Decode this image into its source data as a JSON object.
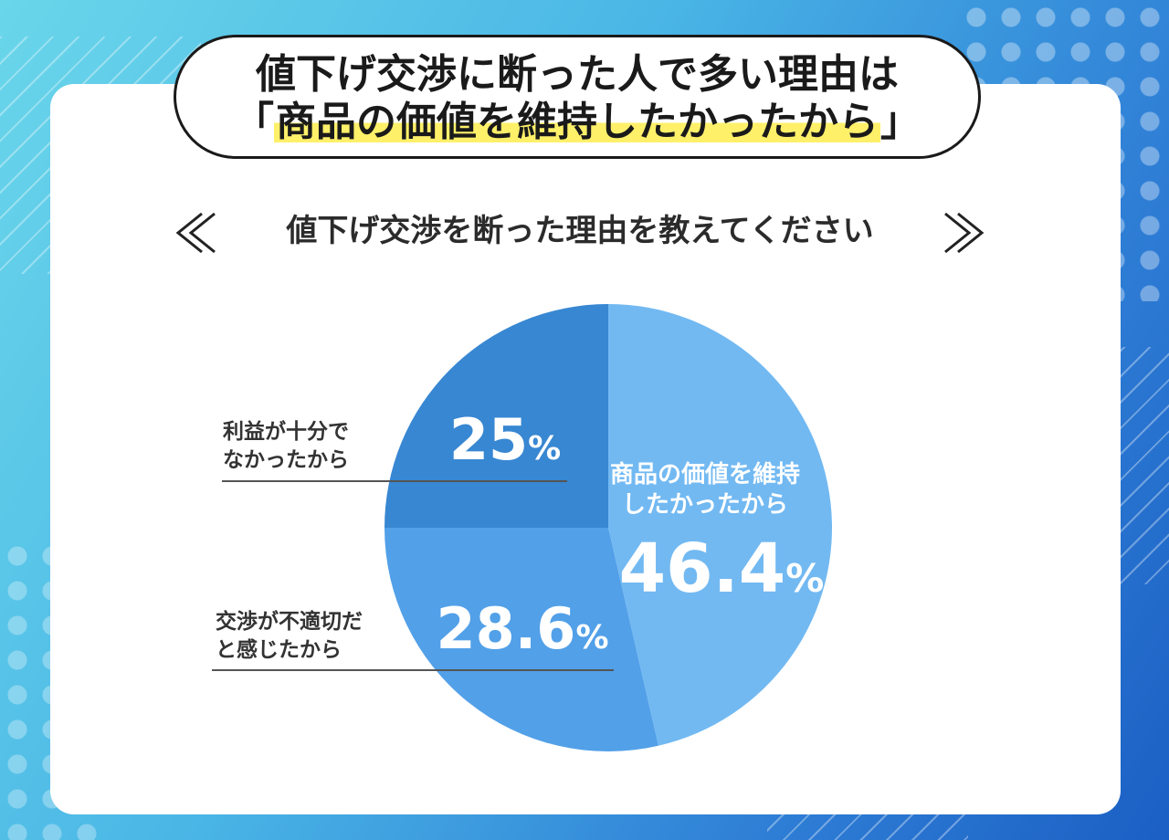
{
  "headline": {
    "line1": "値下げ交渉に断った人で多い理由は",
    "line2_open": "「",
    "line2_highlight": "商品の価値を維持したかったから",
    "line2_close": "」"
  },
  "question": "値下げ交渉を断った理由を教えてください",
  "chart_data": {
    "type": "pie",
    "title": "値下げ交渉を断った理由を教えてください",
    "start_angle_deg": 0,
    "direction": "clockwise",
    "slices": [
      {
        "label_lines": [
          "商品の価値を維持",
          "したかったから"
        ],
        "value": 46.4,
        "value_text": "46.4",
        "unit": "%",
        "color": "#72b9f2",
        "label_position": "inside"
      },
      {
        "label_lines": [
          "交渉が不適切だ",
          "と感じたから"
        ],
        "value": 28.6,
        "value_text": "28.6",
        "unit": "%",
        "color": "#52a0e8",
        "label_position": "outside-left"
      },
      {
        "label_lines": [
          "利益が十分で",
          "なかったから"
        ],
        "value": 25,
        "value_text": "25",
        "unit": "%",
        "color": "#3887d2",
        "label_position": "outside-left"
      }
    ]
  },
  "colors": {
    "highlight": "#fff06a",
    "text_dark": "#1a1a1a"
  }
}
